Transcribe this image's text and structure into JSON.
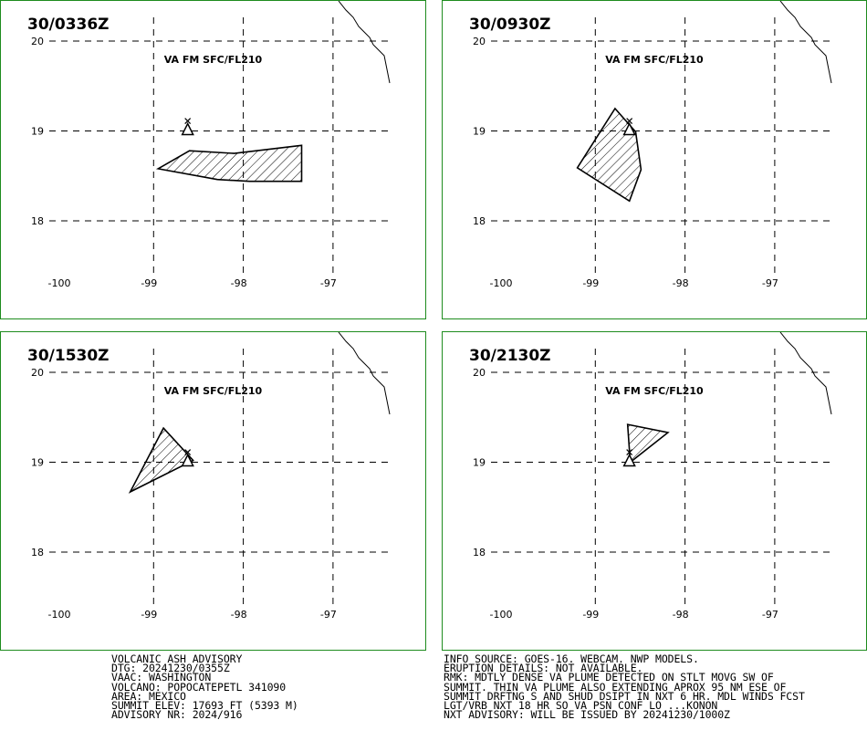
{
  "panels": [
    {
      "title": "30/0336Z",
      "level_label": "VA FM SFC/FL210",
      "lat_ticks": [
        "20",
        "19",
        "18"
      ],
      "lon_ticks": [
        "-100",
        "-99",
        "-98",
        "-97"
      ],
      "ash_polygon_lonlat": [
        [
          -98.95,
          18.58
        ],
        [
          -98.6,
          18.78
        ],
        [
          -98.1,
          18.75
        ],
        [
          -97.35,
          18.84
        ],
        [
          -97.35,
          18.44
        ],
        [
          -97.93,
          18.44
        ],
        [
          -98.29,
          18.46
        ]
      ]
    },
    {
      "title": "30/0930Z",
      "level_label": "VA FM SFC/FL210",
      "lat_ticks": [
        "20",
        "19",
        "18"
      ],
      "lon_ticks": [
        "-100",
        "-99",
        "-98",
        "-97"
      ],
      "ash_polygon_lonlat": [
        [
          -98.78,
          19.25
        ],
        [
          -98.55,
          18.99
        ],
        [
          -98.49,
          18.57
        ],
        [
          -98.62,
          18.22
        ],
        [
          -99.2,
          18.59
        ]
      ]
    },
    {
      "title": "30/1530Z",
      "level_label": "VA FM SFC/FL210",
      "lat_ticks": [
        "20",
        "19",
        "18"
      ],
      "lon_ticks": [
        "-100",
        "-99",
        "-98",
        "-97"
      ],
      "ash_polygon_lonlat": [
        [
          -98.89,
          19.38
        ],
        [
          -98.56,
          19.02
        ],
        [
          -99.26,
          18.67
        ]
      ]
    },
    {
      "title": "30/2130Z",
      "level_label": "VA FM SFC/FL210",
      "lat_ticks": [
        "20",
        "19",
        "18"
      ],
      "lon_ticks": [
        "-100",
        "-99",
        "-98",
        "-97"
      ],
      "ash_polygon_lonlat": [
        [
          -98.64,
          19.42
        ],
        [
          -98.19,
          19.33
        ],
        [
          -98.61,
          19.0
        ]
      ]
    }
  ],
  "volcano_marker": {
    "lon": -98.62,
    "lat": 19.02,
    "name": "POPOCATEPETL"
  },
  "advisory_left": [
    "VOLCANIC ASH ADVISORY",
    "DTG: 20241230/0355Z",
    "VAAC: WASHINGTON",
    "VOLCANO: POPOCATEPETL 341090",
    "AREA: MEXICO",
    "SUMMIT ELEV: 17693 FT (5393 M)",
    "ADVISORY NR: 2024/916"
  ],
  "advisory_right": [
    "INFO SOURCE: GOES-16. WEBCAM. NWP MODELS.",
    "ERUPTION DETAILS: NOT AVAILABLE.",
    "RMK: MDTLY DENSE VA PLUME DETECTED ON STLT MOVG SW OF",
    "SUMMIT. THIN VA PLUME ALSO EXTENDING APROX 95 NM ESE OF",
    "SUMMIT DRFTNG S AND SHUD DSIPT IN NXT 6 HR. MDL WINDS FCST",
    "LGT/VRB NXT 18 HR SO VA PSN CONF LO ...KONON",
    "NXT ADVISORY: WILL BE ISSUED BY 20241230/1000Z"
  ],
  "colors": {
    "frame": "#1e8c1e",
    "ink": "#000000",
    "background": "#ffffff"
  }
}
